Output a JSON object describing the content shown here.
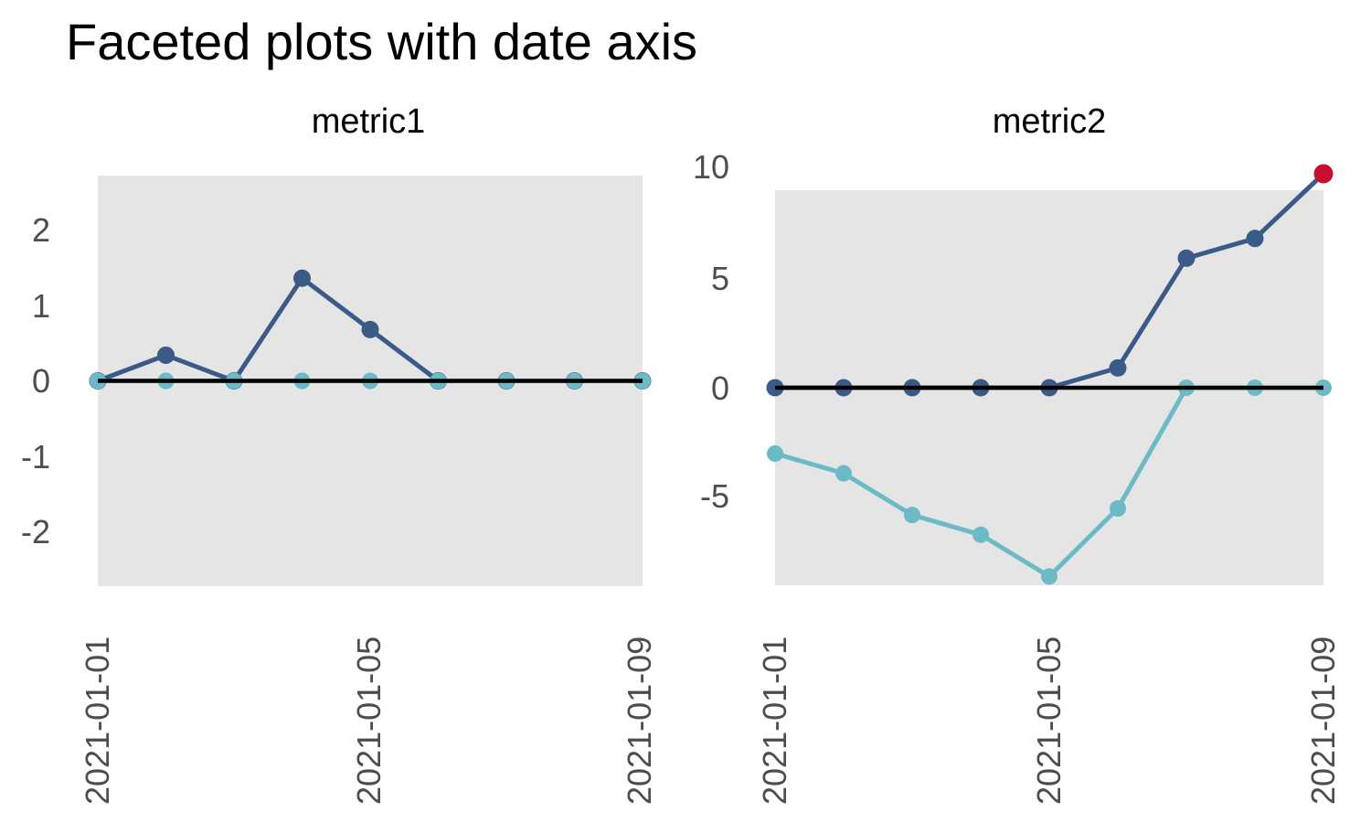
{
  "page": {
    "title": "Faceted plots with date axis"
  },
  "colors": {
    "navy": "#3A5A87",
    "cyan": "#6CBAC5",
    "red": "#C8102E",
    "panel_bg": "#E5E5E5",
    "zero_line": "#000000",
    "axis_text": "#4D4D4D",
    "title_text": "#000000"
  },
  "chart_data": [
    {
      "type": "line",
      "facet_label": "metric1",
      "x_dates": [
        "2021-01-01",
        "2021-01-02",
        "2021-01-03",
        "2021-01-04",
        "2021-01-05",
        "2021-01-06",
        "2021-01-07",
        "2021-01-08",
        "2021-01-09"
      ],
      "x_tick_labels": [
        "2021-01-01",
        "2021-01-05",
        "2021-01-09"
      ],
      "x_tick_indices": [
        0,
        4,
        8
      ],
      "y_tick_labels": [
        "2",
        "1",
        "0",
        "-1",
        "-2"
      ],
      "y_tick_values": [
        2,
        1,
        0,
        -1,
        -2
      ],
      "ylim": [
        -2.72,
        2.72
      ],
      "grid": false,
      "legend": "none",
      "hline_y": 0,
      "series": [
        {
          "name": "series-navy",
          "color_key": "navy",
          "values": [
            0,
            0.34,
            0,
            1.36,
            0.68,
            0,
            0,
            0,
            0
          ]
        },
        {
          "name": "series-cyan",
          "color_key": "cyan",
          "values": [
            0,
            0,
            0,
            0,
            0,
            0,
            0,
            0,
            0
          ]
        }
      ],
      "highlight_point": null
    },
    {
      "type": "line",
      "facet_label": "metric2",
      "x_dates": [
        "2021-01-01",
        "2021-01-02",
        "2021-01-03",
        "2021-01-04",
        "2021-01-05",
        "2021-01-06",
        "2021-01-07",
        "2021-01-08",
        "2021-01-09"
      ],
      "x_tick_labels": [
        "2021-01-01",
        "2021-01-05",
        "2021-01-09"
      ],
      "x_tick_indices": [
        0,
        4,
        8
      ],
      "y_tick_labels": [
        "10",
        "5",
        "0",
        "-5"
      ],
      "y_tick_values": [
        10,
        5,
        0,
        -5
      ],
      "ylim": [
        -9,
        9
      ],
      "grid": false,
      "legend": "none",
      "hline_y": 0,
      "series": [
        {
          "name": "series-navy",
          "color_key": "navy",
          "values": [
            0,
            0,
            0,
            0,
            0,
            0.9,
            5.9,
            6.8,
            9.75
          ]
        },
        {
          "name": "series-cyan",
          "color_key": "cyan",
          "values": [
            -3.0,
            -3.9,
            -5.8,
            -6.7,
            -8.6,
            -5.5,
            0,
            0,
            0
          ]
        }
      ],
      "highlight_point": {
        "x_index": 8,
        "value": 9.75,
        "color_key": "red"
      }
    }
  ]
}
